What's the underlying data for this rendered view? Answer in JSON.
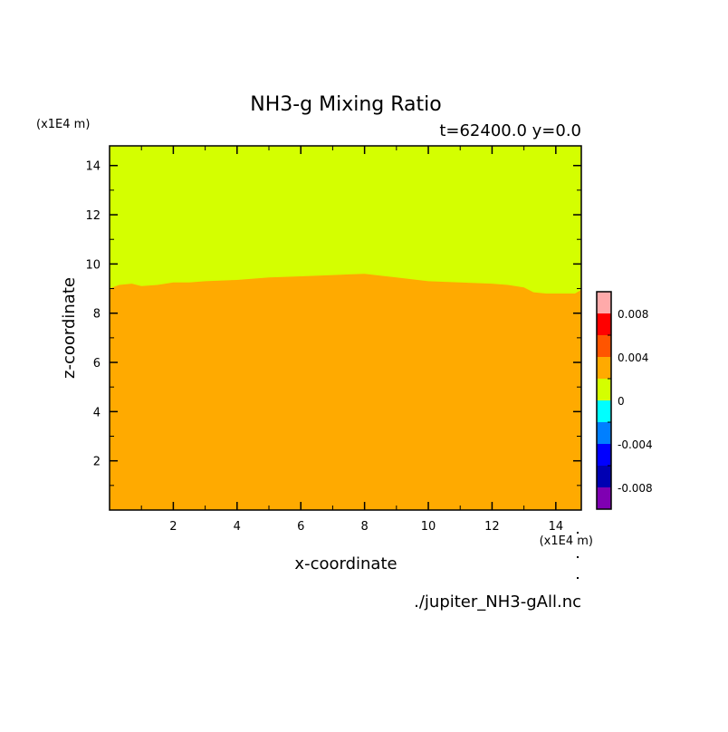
{
  "chart_data": {
    "type": "heatmap",
    "title": "NH3-g Mixing Ratio",
    "subtitle": "t=62400.0 y=0.0",
    "xlabel": "x-coordinate",
    "ylabel": "z-coordinate",
    "x_unit": "(x1E4 m)",
    "y_unit": "(x1E4 m)",
    "footer": "./jupiter_NH3-gAll.nc",
    "xlim": [
      0,
      14.8
    ],
    "ylim": [
      0,
      14.8
    ],
    "x_ticks": [
      2,
      4,
      6,
      8,
      10,
      12,
      14
    ],
    "y_ticks": [
      2,
      4,
      6,
      8,
      10,
      12,
      14
    ],
    "fill_below": "#ffaa00",
    "fill_above": "#d4ff00",
    "boundary": [
      [
        0.0,
        9.0
      ],
      [
        0.3,
        9.15
      ],
      [
        0.7,
        9.2
      ],
      [
        1.0,
        9.1
      ],
      [
        1.5,
        9.15
      ],
      [
        2.0,
        9.25
      ],
      [
        2.5,
        9.25
      ],
      [
        3.0,
        9.3
      ],
      [
        4.0,
        9.35
      ],
      [
        5.0,
        9.45
      ],
      [
        6.0,
        9.5
      ],
      [
        7.0,
        9.55
      ],
      [
        8.0,
        9.6
      ],
      [
        9.0,
        9.45
      ],
      [
        10.0,
        9.3
      ],
      [
        11.0,
        9.25
      ],
      [
        12.0,
        9.2
      ],
      [
        12.5,
        9.15
      ],
      [
        13.0,
        9.05
      ],
      [
        13.3,
        8.85
      ],
      [
        13.7,
        8.8
      ],
      [
        14.2,
        8.8
      ],
      [
        14.6,
        8.8
      ],
      [
        14.8,
        8.95
      ]
    ],
    "colorbar": {
      "colors": [
        "#7f00b2",
        "#0000b2",
        "#0000ff",
        "#007fff",
        "#00ffff",
        "#d4ff00",
        "#ffaa00",
        "#ff5500",
        "#ff0000",
        "#ffaaaa"
      ],
      "ticks": [
        "0.008",
        "0.004",
        "0",
        "-0.004",
        "-0.008"
      ]
    }
  }
}
